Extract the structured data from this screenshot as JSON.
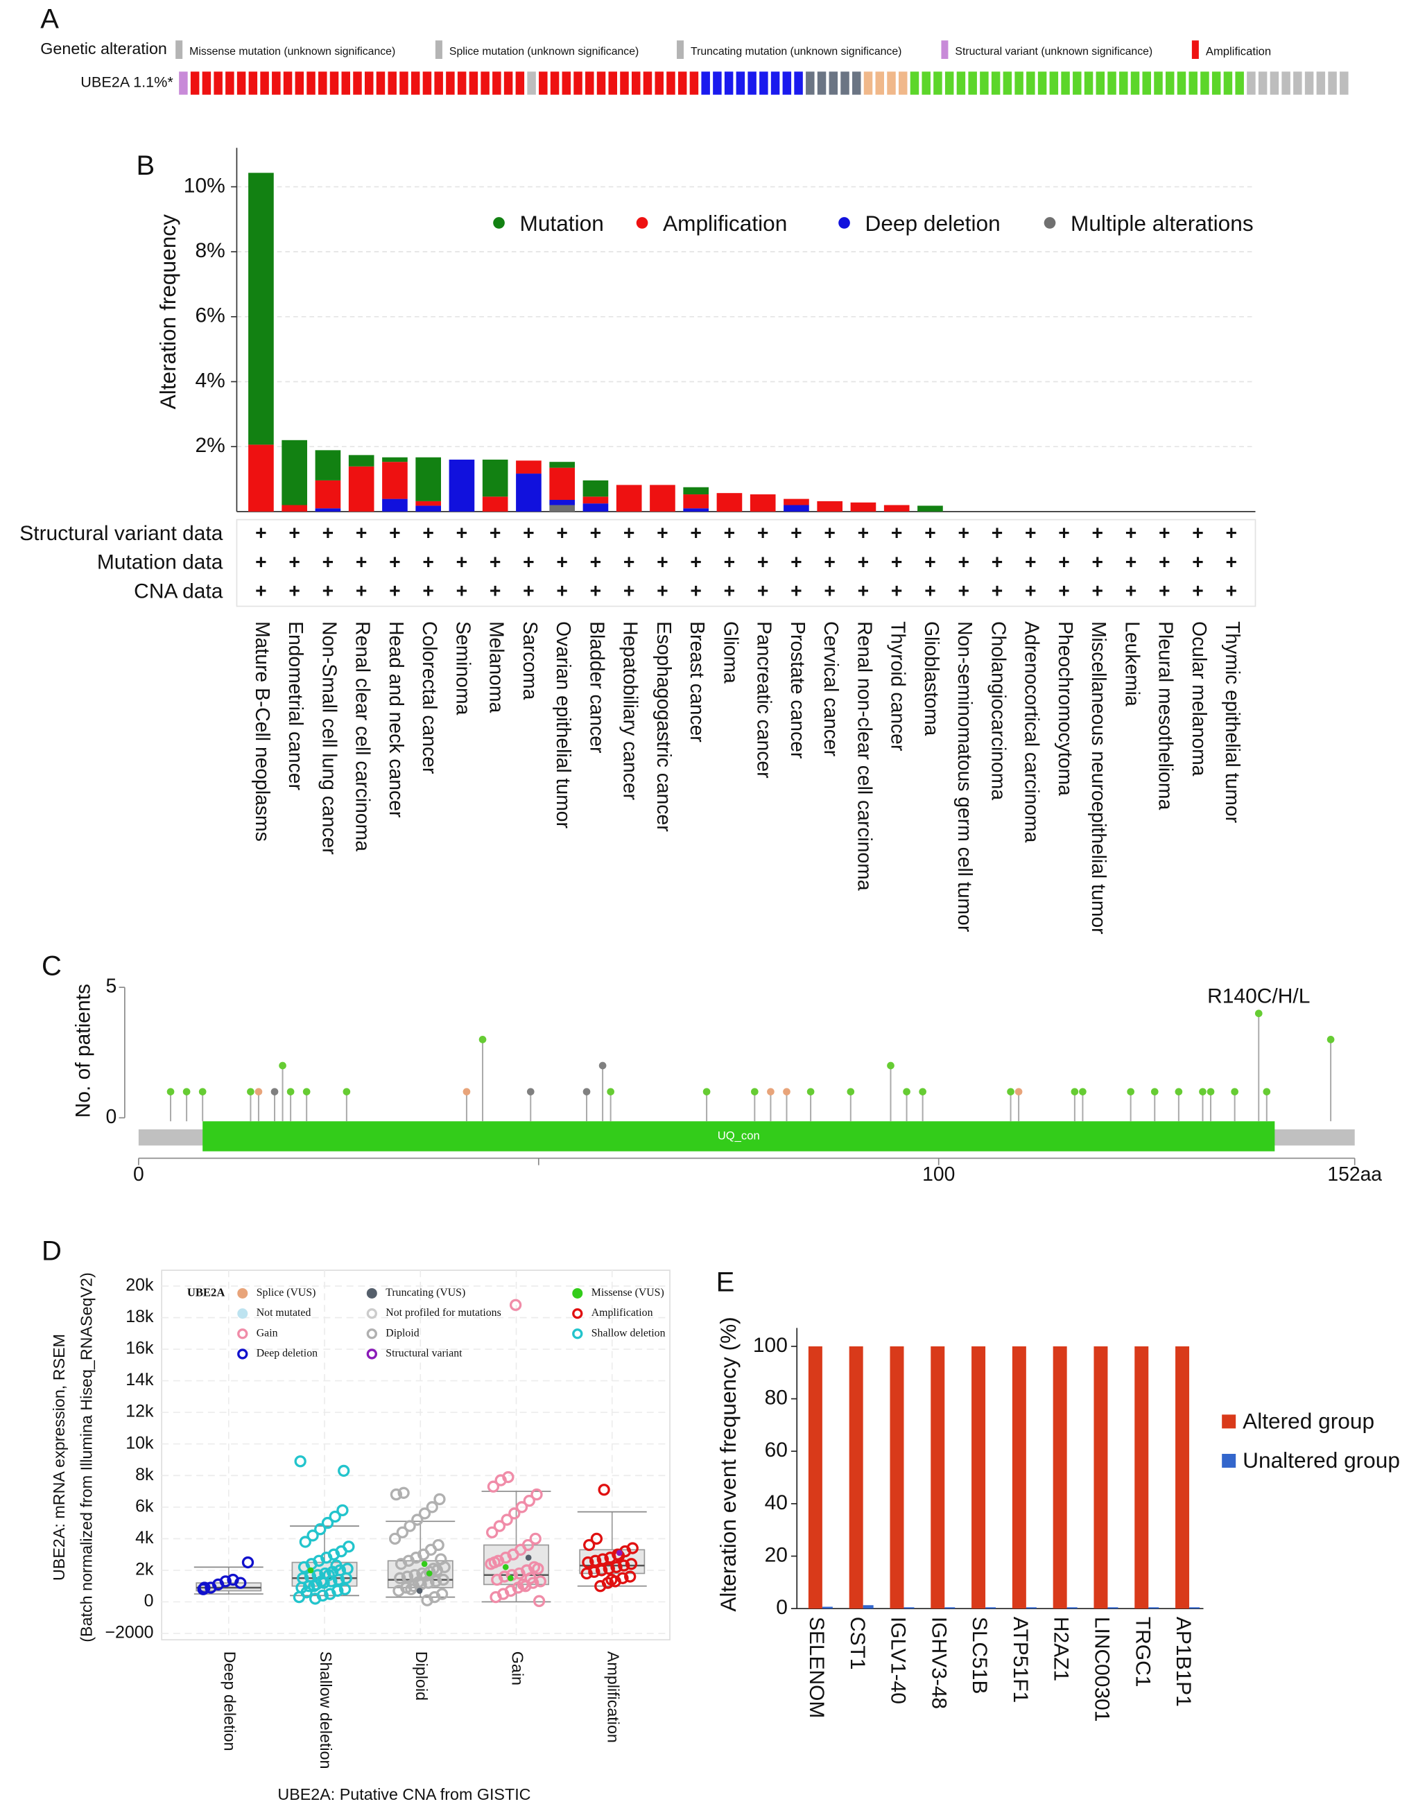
{
  "chart_data": [
    {
      "type": "oncoprint",
      "panel": "A",
      "row_title": "Genetic alteration",
      "gene_label": "UBE2A 1.1%*",
      "legend": [
        {
          "name": "Missense mutation (unknown significance)",
          "color": "#b4b4b4"
        },
        {
          "name": "Splice mutation (unknown significance)",
          "color": "#b4b4b4"
        },
        {
          "name": "Truncating mutation (unknown significance)",
          "color": "#b4b4b4"
        },
        {
          "name": "Structural variant (unknown significance)",
          "color": "#c88ad8"
        },
        {
          "name": "Amplification",
          "color": "#ee1111"
        }
      ],
      "track": {
        "colors": [
          "#c88ad8",
          "#ee1111",
          "#bdbdbd",
          "#ee1111",
          "#1a1aee",
          "#6b7584",
          "#f0b88a",
          "#5cd62a",
          "#bdbdbd"
        ],
        "counts": [
          1,
          29,
          1,
          14,
          9,
          5,
          4,
          29,
          9
        ]
      }
    },
    {
      "type": "stacked_bar",
      "panel": "B",
      "y_label": "Alteration frequency",
      "ylim": [
        0,
        11.2
      ],
      "yticks": [
        {
          "value": 2,
          "label": "2%"
        },
        {
          "value": 4,
          "label": "4%"
        },
        {
          "value": 6,
          "label": "6%"
        },
        {
          "value": 8,
          "label": "8%"
        },
        {
          "value": 10,
          "label": "10%"
        }
      ],
      "grid": true,
      "categories": [
        "Mature B-Cell neoplasms",
        "Endometrial cancer",
        "Non-Small cell lung cancer",
        "Renal clear cell carcinoma",
        "Head and neck cancer",
        "Colorectal cancer",
        "Seminoma",
        "Melanoma",
        "Sarcoma",
        "Ovarian epithelial tumor",
        "Bladder cancer",
        "Hepatobiliary cancer",
        "Esophagogastric cancer",
        "Breast cancer",
        "Glioma",
        "Pancreatic cancer",
        "Prostate cancer",
        "Cervical cancer",
        "Renal non-clear cell carcinoma",
        "Thyroid cancer",
        "Glioblastoma",
        "Non-seminomatous germ cell tumor",
        "Cholangiocarcinoma",
        "Adrenocortical carcinoma",
        "Pheochromocytoma",
        "Miscellaneous neuroepithelial tumor",
        "Leukemia",
        "Pleural mesothelioma",
        "Ocular melanoma",
        "Thymic epithelial tumor"
      ],
      "series": [
        {
          "name": "Mutation",
          "color": "#128112",
          "values": [
            8.37,
            2.0,
            0.93,
            0.35,
            0.14,
            1.35,
            0,
            1.14,
            0,
            0.18,
            0.5,
            0,
            0,
            0.22,
            0,
            0,
            0,
            0,
            0,
            0,
            0.18,
            0,
            0,
            0,
            0,
            0,
            0,
            0,
            0,
            0
          ]
        },
        {
          "name": "Amplification",
          "color": "#ee1111",
          "values": [
            2.06,
            0.2,
            0.86,
            1.39,
            1.14,
            0.14,
            0,
            0.46,
            0.4,
            0.99,
            0.21,
            0.82,
            0.82,
            0.43,
            0.57,
            0.53,
            0.19,
            0.32,
            0.28,
            0.2,
            0,
            0,
            0,
            0,
            0,
            0,
            0,
            0,
            0,
            0
          ]
        },
        {
          "name": "Deep deletion",
          "color": "#1111dd",
          "values": [
            0,
            0,
            0.1,
            0,
            0.39,
            0.18,
            1.6,
            0,
            1.17,
            0.16,
            0.25,
            0,
            0,
            0.1,
            0,
            0,
            0.2,
            0,
            0,
            0,
            0,
            0,
            0,
            0,
            0,
            0,
            0,
            0,
            0,
            0
          ]
        },
        {
          "name": "Multiple alterations",
          "color": "#707070",
          "values": [
            0,
            0,
            0,
            0,
            0,
            0,
            0,
            0,
            0,
            0.2,
            0,
            0,
            0,
            0,
            0,
            0,
            0,
            0,
            0,
            0,
            0,
            0,
            0,
            0,
            0,
            0,
            0,
            0,
            0,
            0
          ]
        }
      ],
      "data_rows": [
        "Structural variant data",
        "Mutation data",
        "CNA data"
      ],
      "data_marker": "+"
    },
    {
      "type": "lollipop",
      "panel": "C",
      "y_label": "No. of patients",
      "xlim": [
        0,
        152
      ],
      "xticks": [
        0,
        {
          "value": 50,
          "label": null
        },
        100,
        {
          "value": 152,
          "label": "152aa"
        }
      ],
      "ylim": [
        0,
        5
      ],
      "yticks": [
        0,
        5
      ],
      "x": [
        4,
        6,
        8,
        14,
        15,
        17,
        18,
        19,
        21,
        26,
        41,
        43,
        49,
        56,
        58,
        59,
        71,
        77,
        79,
        81,
        84,
        89,
        94,
        96,
        98,
        109,
        110,
        117,
        118,
        124,
        127,
        130,
        133,
        134,
        137,
        140,
        141,
        149
      ],
      "values": [
        1,
        1,
        1,
        1,
        1,
        1,
        2,
        1,
        1,
        1,
        1,
        3,
        1,
        1,
        2,
        1,
        1,
        1,
        1,
        1,
        1,
        1,
        2,
        1,
        1,
        1,
        1,
        1,
        1,
        1,
        1,
        1,
        1,
        1,
        1,
        4,
        1,
        3
      ],
      "colors": [
        "#66cc33",
        "#66cc33",
        "#66cc33",
        "#66cc33",
        "#e8a47a",
        "#808080",
        "#66cc33",
        "#66cc33",
        "#66cc33",
        "#66cc33",
        "#e8a47a",
        "#66cc33",
        "#808080",
        "#808080",
        "#808080",
        "#66cc33",
        "#66cc33",
        "#66cc33",
        "#e8a47a",
        "#e8a47a",
        "#66cc33",
        "#66cc33",
        "#66cc33",
        "#66cc33",
        "#66cc33",
        "#66cc33",
        "#e8a47a",
        "#66cc33",
        "#66cc33",
        "#66cc33",
        "#66cc33",
        "#66cc33",
        "#66cc33",
        "#66cc33",
        "#66cc33",
        "#66cc33",
        "#66cc33",
        "#66cc33"
      ],
      "value_labels": [
        null,
        null,
        null,
        null,
        null,
        null,
        null,
        null,
        null,
        null,
        null,
        null,
        null,
        null,
        null,
        null,
        null,
        null,
        null,
        null,
        null,
        null,
        null,
        null,
        null,
        null,
        null,
        null,
        null,
        null,
        null,
        null,
        null,
        null,
        null,
        "R140C/H/L",
        null,
        null
      ],
      "domains": [
        {
          "name": "UQ_con",
          "start": 8,
          "end": 142,
          "color": "#33cc1a"
        }
      ]
    },
    {
      "type": "box_scatter",
      "panel": "D",
      "y_label": [
        "UBE2A: mRNA expression, RSEM",
        "(Batch normalized from Illumina Hiseq_RNASeqV2)"
      ],
      "x_label": "UBE2A: Putative CNA from GISTIC",
      "ylim": [
        -2400,
        21000
      ],
      "yticks": [
        {
          "value": -2000,
          "label": "−2000"
        },
        0,
        {
          "value": 2000,
          "label": "2k"
        },
        {
          "value": 4000,
          "label": "4k"
        },
        {
          "value": 6000,
          "label": "6k"
        },
        {
          "value": 8000,
          "label": "8k"
        },
        {
          "value": 10000,
          "label": "10k"
        },
        {
          "value": 12000,
          "label": "12k"
        },
        {
          "value": 14000,
          "label": "14k"
        },
        {
          "value": 16000,
          "label": "16k"
        },
        {
          "value": 18000,
          "label": "18k"
        },
        {
          "value": 20000,
          "label": "20k"
        }
      ],
      "grid": true,
      "categories": [
        "Deep deletion",
        "Shallow deletion",
        "Diploid",
        "Gain",
        "Amplification"
      ],
      "groups": [
        {
          "color": "#1111cc",
          "points": [
            800,
            900,
            1100,
            1300,
            1400,
            1200,
            2500,
            900
          ]
        },
        {
          "color": "#22c4cc",
          "points": [
            200,
            400,
            500,
            700,
            800,
            900,
            1000,
            1100,
            1200,
            1300,
            1400,
            1500,
            1500,
            1600,
            1700,
            1800,
            1900,
            2000,
            2100,
            2200,
            2400,
            2600,
            2800,
            3000,
            3200,
            3500,
            3800,
            4200,
            4600,
            5000,
            5400,
            5800,
            300,
            600,
            1000,
            1300,
            1700,
            2300,
            8300,
            8900
          ]
        },
        {
          "color": "#b0b0b0",
          "points": [
            100,
            300,
            500,
            700,
            900,
            1000,
            1100,
            1200,
            1300,
            1400,
            1500,
            1600,
            1700,
            1800,
            1900,
            2000,
            2200,
            2400,
            2600,
            2800,
            3000,
            3300,
            3600,
            4000,
            4400,
            4800,
            5200,
            5600,
            6000,
            6500,
            6800,
            6900,
            800,
            1250,
            1650,
            2100,
            2700
          ]
        },
        {
          "color": "#f08ca8",
          "points": [
            50,
            300,
            500,
            700,
            900,
            1000,
            1200,
            1300,
            1400,
            1600,
            1700,
            1800,
            2000,
            2200,
            2400,
            2600,
            2800,
            3000,
            3300,
            3600,
            4000,
            4400,
            4800,
            5200,
            5600,
            6000,
            6400,
            6800,
            7300,
            7700,
            7900,
            18800,
            1100,
            1500,
            2100,
            2500
          ]
        },
        {
          "color": "#e01010",
          "points": [
            1000,
            1200,
            1300,
            1500,
            1600,
            1800,
            1900,
            2000,
            2100,
            2200,
            2300,
            2400,
            2500,
            2600,
            2700,
            2800,
            3000,
            3200,
            3400,
            3600,
            4000,
            7100,
            1400,
            2900
          ]
        }
      ],
      "boxes": {
        "low": [
          500,
          400,
          300,
          0,
          1000
        ],
        "q1": [
          700,
          1000,
          900,
          1100,
          1800
        ],
        "median": [
          900,
          1500,
          1400,
          1700,
          2300
        ],
        "q3": [
          1200,
          2500,
          2600,
          3600,
          3300
        ],
        "high": [
          2200,
          4800,
          5100,
          7000,
          5700
        ]
      },
      "overlay": [
        {
          "group": 1,
          "value": 2000,
          "color": "#33cc1a"
        },
        {
          "group": 2,
          "value": 1800,
          "color": "#33cc1a"
        },
        {
          "group": 2,
          "value": 2400,
          "color": "#33cc1a"
        },
        {
          "group": 2,
          "value": 700,
          "color": "#555f6b"
        },
        {
          "group": 3,
          "value": 1500,
          "color": "#33cc1a"
        },
        {
          "group": 3,
          "value": 2200,
          "color": "#33cc1a"
        },
        {
          "group": 3,
          "value": 2800,
          "color": "#555f6b"
        },
        {
          "group": 4,
          "value": 3100,
          "color": "#8a1ab8"
        }
      ],
      "legend_title": "UBE2A",
      "legend": [
        {
          "name": "Splice (VUS)",
          "color": "#e8a47a",
          "style": "dot"
        },
        {
          "name": "Not mutated",
          "color": "#bde3f0",
          "style": "dot"
        },
        {
          "name": "Gain",
          "color": "#f08ca8",
          "style": "ring"
        },
        {
          "name": "Deep deletion",
          "color": "#1111cc",
          "style": "ring"
        },
        {
          "name": "Truncating (VUS)",
          "color": "#555f6b",
          "style": "dot"
        },
        {
          "name": "Not profiled for mutations",
          "color": "#cccccc",
          "style": "ring"
        },
        {
          "name": "Diploid",
          "color": "#b0b0b0",
          "style": "ring"
        },
        {
          "name": "Structural variant",
          "color": "#8a1ab8",
          "style": "ring"
        },
        {
          "name": "Missense (VUS)",
          "color": "#33cc1a",
          "style": "dot"
        },
        {
          "name": "Amplification",
          "color": "#e01010",
          "style": "ring"
        },
        {
          "name": "Shallow deletion",
          "color": "#22c4cc",
          "style": "ring"
        }
      ]
    },
    {
      "type": "grouped_bar",
      "panel": "E",
      "y_label": "Alteration event frequency (%)",
      "ylim": [
        0,
        107
      ],
      "yticks": [
        0,
        20,
        40,
        60,
        80,
        100
      ],
      "categories": [
        "SELENOM",
        "CST1",
        "IGLV1-40",
        "IGHV3-48",
        "SLC51B",
        "ATP51F1",
        "H2AZ1",
        "LINC00301",
        "TRGC1",
        "AP1B1P1"
      ],
      "series": [
        {
          "name": "Altered group",
          "color": "#d93a1a",
          "values": [
            100,
            100,
            100,
            100,
            100,
            100,
            100,
            100,
            100,
            100
          ]
        },
        {
          "name": "Unaltered group",
          "color": "#3366cc",
          "values": [
            0.7,
            1.3,
            0.5,
            0.5,
            0.5,
            0.5,
            0.5,
            0.5,
            0.5,
            0.5
          ]
        }
      ]
    }
  ]
}
